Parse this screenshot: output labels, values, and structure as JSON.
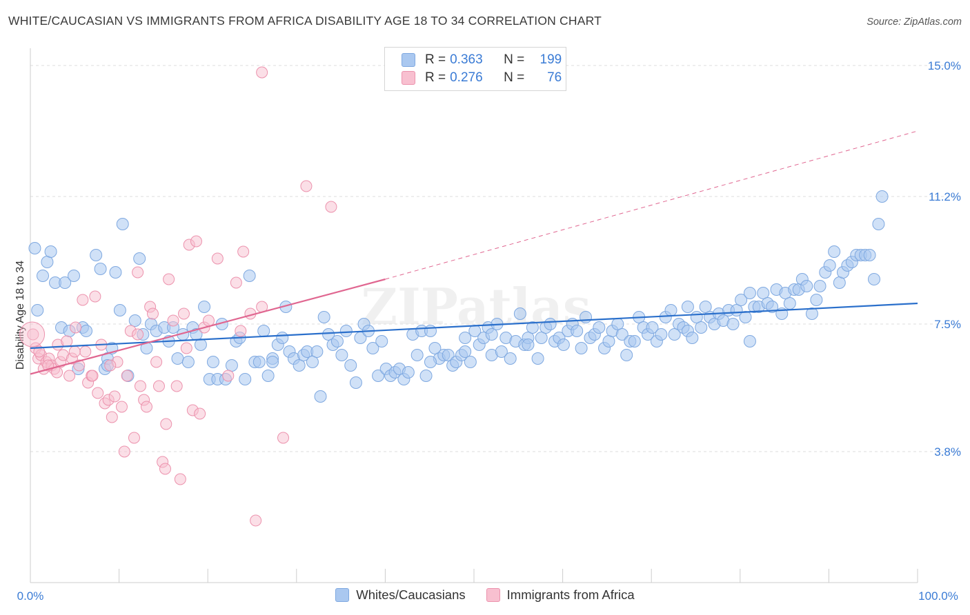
{
  "header": {
    "title": "WHITE/CAUCASIAN VS IMMIGRANTS FROM AFRICA DISABILITY AGE 18 TO 34 CORRELATION CHART",
    "source": "Source: ZipAtlas.com"
  },
  "legend": {
    "series1": {
      "r_label": "R =",
      "r_value": "0.363",
      "n_label": "N =",
      "n_value": "199"
    },
    "series2": {
      "r_label": "R =",
      "r_value": "0.276",
      "n_label": "N =",
      "n_value": "76"
    }
  },
  "watermark": "ZIPatlas",
  "colors": {
    "blue_fill": "#aac8f0",
    "blue_stroke": "#7ea8e0",
    "blue_line": "#2a6fcb",
    "pink_fill": "#f8c0d0",
    "pink_stroke": "#ec92ad",
    "pink_line": "#e06690",
    "grid": "#dddddd",
    "tick_label": "#3a7bd5"
  },
  "chart_data": {
    "type": "scatter",
    "title": "WHITE/CAUCASIAN VS IMMIGRANTS FROM AFRICA DISABILITY AGE 18 TO 34 CORRELATION CHART",
    "xlabel": "",
    "ylabel": "Disability Age 18 to 34",
    "xlim": [
      0,
      100
    ],
    "ylim": [
      0,
      15.5
    ],
    "x_tick_labels": [
      "0.0%",
      "100.0%"
    ],
    "y_ticks": [
      3.8,
      7.5,
      11.2,
      15.0
    ],
    "y_tick_labels": [
      "3.8%",
      "7.5%",
      "11.2%",
      "15.0%"
    ],
    "grid": true,
    "legend_position": "top-center",
    "series": [
      {
        "name": "Whites/Caucasians",
        "trend": {
          "x": [
            0,
            100
          ],
          "y": [
            6.8,
            8.1
          ]
        },
        "points": [
          [
            0.5,
            9.7
          ],
          [
            0.8,
            7.9
          ],
          [
            1.4,
            8.9
          ],
          [
            1.9,
            9.3
          ],
          [
            2.3,
            9.6
          ],
          [
            2.8,
            8.7
          ],
          [
            3.5,
            7.4
          ],
          [
            3.9,
            8.7
          ],
          [
            4.4,
            7.3
          ],
          [
            4.9,
            8.9
          ],
          [
            5.4,
            6.2
          ],
          [
            5.9,
            7.4
          ],
          [
            6.3,
            7.3
          ],
          [
            7.4,
            9.5
          ],
          [
            7.9,
            9.1
          ],
          [
            8.4,
            6.2
          ],
          [
            8.7,
            6.5
          ],
          [
            9.2,
            6.8
          ],
          [
            9.6,
            9.0
          ],
          [
            10.1,
            7.9
          ],
          [
            10.4,
            10.4
          ],
          [
            11.0,
            6.0
          ],
          [
            11.8,
            7.6
          ],
          [
            12.3,
            9.4
          ],
          [
            12.7,
            7.2
          ],
          [
            13.1,
            6.8
          ],
          [
            13.6,
            7.5
          ],
          [
            14.2,
            7.3
          ],
          [
            15.1,
            7.4
          ],
          [
            15.6,
            7.0
          ],
          [
            16.1,
            7.4
          ],
          [
            16.6,
            6.5
          ],
          [
            17.2,
            7.2
          ],
          [
            17.8,
            6.4
          ],
          [
            18.3,
            7.4
          ],
          [
            18.7,
            7.2
          ],
          [
            19.2,
            6.9
          ],
          [
            19.6,
            8.0
          ],
          [
            20.2,
            5.9
          ],
          [
            20.6,
            6.4
          ],
          [
            21.1,
            5.9
          ],
          [
            21.6,
            7.5
          ],
          [
            22.0,
            5.9
          ],
          [
            22.7,
            6.3
          ],
          [
            23.2,
            7.0
          ],
          [
            23.6,
            7.1
          ],
          [
            24.2,
            5.9
          ],
          [
            24.7,
            8.9
          ],
          [
            25.3,
            6.4
          ],
          [
            25.8,
            6.4
          ],
          [
            26.3,
            7.3
          ],
          [
            26.8,
            6.0
          ],
          [
            27.3,
            6.5
          ],
          [
            27.9,
            6.9
          ],
          [
            28.4,
            7.1
          ],
          [
            28.8,
            8.0
          ],
          [
            29.2,
            6.7
          ],
          [
            29.7,
            6.5
          ],
          [
            30.3,
            6.3
          ],
          [
            30.8,
            6.6
          ],
          [
            31.2,
            6.7
          ],
          [
            31.8,
            6.4
          ],
          [
            32.3,
            6.7
          ],
          [
            32.7,
            5.4
          ],
          [
            33.1,
            7.7
          ],
          [
            33.6,
            7.2
          ],
          [
            34.1,
            6.9
          ],
          [
            34.6,
            7.0
          ],
          [
            35.1,
            6.6
          ],
          [
            35.6,
            7.3
          ],
          [
            36.1,
            6.3
          ],
          [
            36.7,
            5.8
          ],
          [
            37.2,
            7.1
          ],
          [
            37.6,
            7.5
          ],
          [
            38.1,
            7.3
          ],
          [
            38.6,
            6.8
          ],
          [
            39.2,
            6.0
          ],
          [
            39.6,
            7.0
          ],
          [
            40.1,
            6.2
          ],
          [
            40.6,
            6.0
          ],
          [
            41.1,
            6.1
          ],
          [
            41.6,
            6.2
          ],
          [
            42.1,
            5.9
          ],
          [
            42.6,
            6.1
          ],
          [
            43.1,
            7.2
          ],
          [
            43.6,
            6.6
          ],
          [
            44.1,
            7.3
          ],
          [
            44.6,
            6.0
          ],
          [
            45.1,
            7.3
          ],
          [
            45.6,
            6.8
          ],
          [
            46.1,
            6.5
          ],
          [
            46.6,
            6.6
          ],
          [
            47.1,
            6.6
          ],
          [
            47.6,
            6.3
          ],
          [
            48.0,
            6.4
          ],
          [
            48.6,
            6.6
          ],
          [
            49.0,
            7.1
          ],
          [
            49.6,
            6.4
          ],
          [
            50.1,
            7.3
          ],
          [
            50.6,
            6.9
          ],
          [
            51.1,
            7.1
          ],
          [
            51.6,
            7.4
          ],
          [
            52.0,
            6.6
          ],
          [
            52.6,
            7.5
          ],
          [
            53.1,
            6.7
          ],
          [
            53.6,
            7.1
          ],
          [
            54.1,
            6.5
          ],
          [
            54.7,
            7.0
          ],
          [
            55.2,
            7.8
          ],
          [
            55.7,
            6.9
          ],
          [
            56.1,
            7.1
          ],
          [
            56.6,
            7.4
          ],
          [
            57.2,
            6.5
          ],
          [
            57.6,
            7.1
          ],
          [
            58.1,
            7.4
          ],
          [
            58.6,
            7.5
          ],
          [
            59.1,
            7.0
          ],
          [
            59.6,
            7.1
          ],
          [
            60.1,
            6.9
          ],
          [
            60.6,
            7.3
          ],
          [
            61.1,
            7.5
          ],
          [
            61.6,
            7.3
          ],
          [
            62.1,
            6.8
          ],
          [
            62.6,
            7.7
          ],
          [
            63.1,
            7.1
          ],
          [
            63.6,
            7.2
          ],
          [
            64.1,
            7.4
          ],
          [
            64.7,
            6.8
          ],
          [
            65.2,
            7.0
          ],
          [
            65.6,
            7.3
          ],
          [
            66.2,
            7.5
          ],
          [
            66.7,
            7.2
          ],
          [
            67.2,
            6.6
          ],
          [
            67.6,
            7.0
          ],
          [
            68.1,
            7.0
          ],
          [
            68.6,
            7.7
          ],
          [
            69.1,
            7.4
          ],
          [
            69.6,
            7.2
          ],
          [
            70.1,
            7.4
          ],
          [
            70.6,
            7.0
          ],
          [
            71.1,
            7.2
          ],
          [
            71.6,
            7.7
          ],
          [
            72.2,
            7.9
          ],
          [
            72.6,
            7.2
          ],
          [
            73.1,
            7.5
          ],
          [
            73.6,
            7.4
          ],
          [
            74.1,
            7.3
          ],
          [
            74.6,
            7.1
          ],
          [
            75.1,
            7.7
          ],
          [
            75.6,
            7.4
          ],
          [
            76.1,
            8.0
          ],
          [
            76.6,
            7.7
          ],
          [
            77.1,
            7.5
          ],
          [
            77.6,
            7.8
          ],
          [
            78.1,
            7.6
          ],
          [
            78.7,
            7.9
          ],
          [
            79.2,
            7.5
          ],
          [
            79.6,
            7.9
          ],
          [
            80.1,
            8.2
          ],
          [
            80.6,
            7.7
          ],
          [
            81.1,
            7.0
          ],
          [
            81.6,
            8.0
          ],
          [
            82.1,
            8.0
          ],
          [
            82.6,
            8.4
          ],
          [
            83.1,
            8.1
          ],
          [
            83.6,
            8.0
          ],
          [
            84.1,
            8.5
          ],
          [
            84.7,
            7.8
          ],
          [
            85.1,
            8.4
          ],
          [
            85.6,
            8.1
          ],
          [
            86.1,
            8.5
          ],
          [
            86.6,
            8.5
          ],
          [
            87.0,
            8.8
          ],
          [
            87.5,
            8.6
          ],
          [
            88.1,
            7.8
          ],
          [
            88.6,
            8.2
          ],
          [
            89.0,
            8.6
          ],
          [
            89.6,
            9.0
          ],
          [
            90.1,
            9.2
          ],
          [
            90.6,
            9.6
          ],
          [
            91.2,
            8.7
          ],
          [
            91.6,
            9.0
          ],
          [
            92.1,
            9.2
          ],
          [
            92.6,
            9.3
          ],
          [
            93.1,
            9.5
          ],
          [
            93.6,
            9.5
          ],
          [
            94.1,
            9.5
          ],
          [
            94.6,
            9.5
          ],
          [
            95.1,
            8.8
          ],
          [
            95.6,
            10.4
          ],
          [
            96.0,
            11.2
          ],
          [
            81.1,
            8.4
          ],
          [
            74.1,
            8.0
          ],
          [
            52.0,
            7.2
          ],
          [
            49.0,
            6.7
          ],
          [
            45.1,
            6.4
          ],
          [
            56.1,
            6.9
          ],
          [
            27.3,
            6.4
          ],
          [
            8.7,
            6.3
          ]
        ]
      },
      {
        "name": "Immigrants from Africa",
        "trend": {
          "x": [
            0,
            40
          ],
          "y": [
            6.05,
            8.8
          ]
        },
        "trend_dashed": {
          "x": [
            40,
            100
          ],
          "y": [
            8.8,
            13.1
          ]
        },
        "points": [
          [
            0.3,
            7.2
          ],
          [
            0.6,
            6.8
          ],
          [
            0.9,
            6.5
          ],
          [
            1.2,
            6.6
          ],
          [
            1.5,
            6.2
          ],
          [
            1.8,
            6.4
          ],
          [
            2.1,
            6.5
          ],
          [
            2.4,
            6.3
          ],
          [
            2.7,
            6.2
          ],
          [
            3.1,
            6.9
          ],
          [
            3.4,
            6.4
          ],
          [
            3.7,
            6.6
          ],
          [
            4.1,
            7.0
          ],
          [
            4.4,
            6.0
          ],
          [
            4.7,
            6.5
          ],
          [
            5.1,
            7.4
          ],
          [
            5.5,
            6.3
          ],
          [
            5.9,
            8.2
          ],
          [
            6.2,
            6.7
          ],
          [
            6.5,
            5.8
          ],
          [
            6.9,
            6.0
          ],
          [
            7.3,
            8.3
          ],
          [
            7.6,
            5.5
          ],
          [
            8.0,
            6.9
          ],
          [
            8.4,
            5.2
          ],
          [
            8.8,
            5.3
          ],
          [
            9.2,
            4.8
          ],
          [
            9.5,
            5.4
          ],
          [
            9.8,
            6.4
          ],
          [
            10.3,
            5.1
          ],
          [
            10.6,
            3.8
          ],
          [
            10.9,
            6.0
          ],
          [
            11.3,
            7.3
          ],
          [
            11.7,
            4.2
          ],
          [
            12.1,
            7.2
          ],
          [
            12.4,
            5.7
          ],
          [
            12.8,
            5.3
          ],
          [
            13.1,
            5.1
          ],
          [
            13.5,
            8.0
          ],
          [
            13.8,
            7.8
          ],
          [
            14.2,
            6.4
          ],
          [
            14.5,
            5.7
          ],
          [
            14.9,
            3.5
          ],
          [
            15.3,
            4.6
          ],
          [
            15.6,
            8.8
          ],
          [
            16.1,
            7.6
          ],
          [
            16.5,
            5.7
          ],
          [
            16.9,
            3.0
          ],
          [
            17.3,
            7.8
          ],
          [
            17.6,
            6.8
          ],
          [
            17.9,
            9.8
          ],
          [
            18.3,
            5.0
          ],
          [
            18.7,
            9.9
          ],
          [
            19.1,
            4.9
          ],
          [
            19.6,
            7.4
          ],
          [
            21.1,
            9.4
          ],
          [
            22.3,
            6.0
          ],
          [
            23.2,
            8.7
          ],
          [
            23.7,
            7.3
          ],
          [
            24.0,
            9.6
          ],
          [
            24.8,
            7.8
          ],
          [
            25.4,
            1.8
          ],
          [
            26.1,
            8.0
          ],
          [
            28.5,
            4.2
          ],
          [
            31.1,
            11.5
          ],
          [
            33.9,
            10.9
          ],
          [
            26.1,
            14.8
          ],
          [
            15.2,
            3.3
          ],
          [
            12.1,
            9.0
          ],
          [
            20.1,
            7.6
          ],
          [
            9.0,
            6.3
          ],
          [
            7.0,
            6.0
          ],
          [
            5.0,
            6.7
          ],
          [
            3.0,
            6.1
          ],
          [
            2.0,
            6.3
          ],
          [
            1.0,
            6.7
          ]
        ]
      }
    ]
  },
  "bottom_legend": {
    "item1": "Whites/Caucasians",
    "item2": "Immigrants from Africa"
  }
}
